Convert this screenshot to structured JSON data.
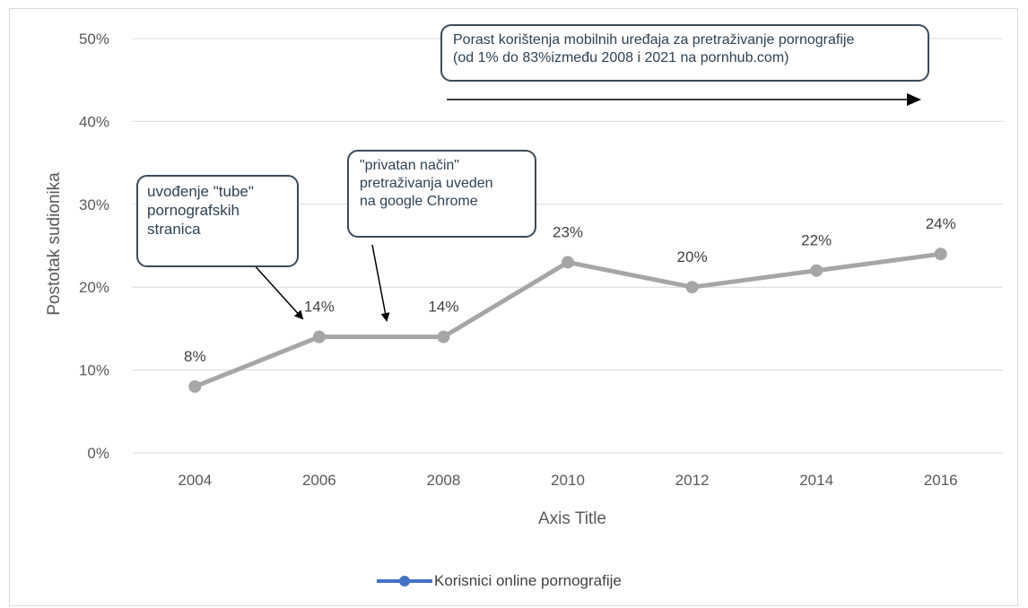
{
  "chart_data": {
    "type": "line",
    "title": "",
    "xlabel": "Axis Title",
    "ylabel": "Postotak sudionika",
    "categories": [
      "2004",
      "2006",
      "2008",
      "2010",
      "2012",
      "2014",
      "2016"
    ],
    "series": [
      {
        "name": "Korisnici online pornografije",
        "values": [
          8,
          14,
          14,
          23,
          20,
          22,
          24
        ]
      }
    ],
    "data_labels": [
      "8%",
      "14%",
      "14%",
      "23%",
      "20%",
      "22%",
      "24%"
    ],
    "y_ticks": [
      "0%",
      "10%",
      "20%",
      "30%",
      "40%",
      "50%"
    ],
    "ylim": [
      0,
      50
    ],
    "grid": true,
    "legend_position": "bottom",
    "line_color": "#a6a6a6",
    "marker_color": "#a6a6a6",
    "legend_color": "#4472c4",
    "annotations": [
      "uvođenje \"tube\"\npornografskih\nstranica",
      "\"privatan način\"\npretraživanja uveden\nna google Chrome",
      "Porast korištenja mobilnih uređaja za pretraživanje pornografije\n(od 1% do 83%između 2008 i 2021 na pornhub.com)"
    ]
  },
  "legend": {
    "label": "Korisnici online pornografije"
  }
}
